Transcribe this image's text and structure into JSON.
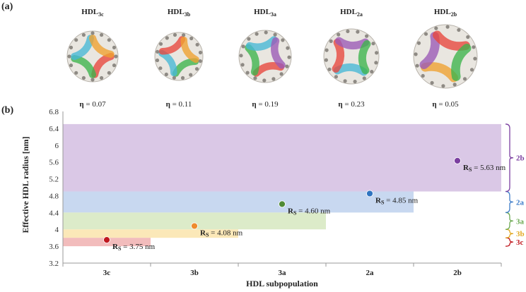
{
  "panel_a": {
    "label": "(a)",
    "eta_symbol": "η",
    "particles": [
      {
        "name_main": "HDL",
        "name_sub": "3c",
        "eta": "= 0.07",
        "colors": [
          "#e8453c",
          "#3cb44b",
          "#46b7d6",
          "#f0a030"
        ]
      },
      {
        "name_main": "HDL",
        "name_sub": "3b",
        "eta": "= 0.11",
        "colors": [
          "#3cb44b",
          "#46b7d6",
          "#e8453c",
          "#f0a030"
        ]
      },
      {
        "name_main": "HDL",
        "name_sub": "3a",
        "eta": "= 0.19",
        "colors": [
          "#e8453c",
          "#3cb44b",
          "#46b7d6",
          "#9b59b6"
        ]
      },
      {
        "name_main": "HDL",
        "name_sub": "2a",
        "eta": "= 0.23",
        "colors": [
          "#46b7d6",
          "#e8453c",
          "#9b59b6",
          "#3cb44b"
        ]
      },
      {
        "name_main": "HDL",
        "name_sub": "2b",
        "eta": "= 0.05",
        "colors": [
          "#f0a030",
          "#9b59b6",
          "#e8453c",
          "#3cb44b"
        ]
      }
    ]
  },
  "chart_data": {
    "type": "scatter",
    "panel_label": "(b)",
    "xlabel": "HDL subpopulation",
    "ylabel": "Effective HDL radius [nm]",
    "categories": [
      "3c",
      "3b",
      "3a",
      "2a",
      "2b"
    ],
    "ylim": [
      3.2,
      6.8
    ],
    "yticks": [
      "3.2",
      "3.6",
      "4",
      "4.4",
      "4.8",
      "5.2",
      "5.6",
      "6",
      "6.4",
      "6.8"
    ],
    "points": [
      {
        "category": "3c",
        "y": 3.75,
        "label_main": "R",
        "label_sub": "S",
        "label_value": " = 3.75 nm",
        "color": "#c0181f"
      },
      {
        "category": "3b",
        "y": 4.08,
        "label_main": "R",
        "label_sub": "S",
        "label_value": " = 4.08 nm",
        "color": "#ee8b2e"
      },
      {
        "category": "3a",
        "y": 4.6,
        "label_main": "R",
        "label_sub": "S",
        "label_value": " = 4.60 nm",
        "color": "#4f8a35"
      },
      {
        "category": "2a",
        "y": 4.85,
        "label_main": "R",
        "label_sub": "S",
        "label_value": " = 4.85 nm",
        "color": "#2f74c0"
      },
      {
        "category": "2b",
        "y": 5.63,
        "label_main": "R",
        "label_sub": "S",
        "label_value": " = 5.63 nm",
        "color": "#7b3fa0"
      }
    ],
    "bands": [
      {
        "name": "3c",
        "y0": 3.6,
        "y1": 3.8,
        "x_end_category": "3c",
        "fill": "#f2bcbc",
        "brace_color": "#c0181f"
      },
      {
        "name": "3b",
        "y0": 3.8,
        "y1": 4.0,
        "x_end_category": "3b",
        "fill": "#fbe8b8",
        "brace_color": "#e2a923"
      },
      {
        "name": "3a",
        "y0": 4.0,
        "y1": 4.4,
        "x_end_category": "3a",
        "fill": "#dcebc9",
        "brace_color": "#6aa84f"
      },
      {
        "name": "2a",
        "y0": 4.4,
        "y1": 4.9,
        "x_end_category": "2a",
        "fill": "#c8d8f0",
        "brace_color": "#3d7cc9"
      },
      {
        "name": "2b",
        "y0": 4.9,
        "y1": 6.5,
        "x_end_category": "2b",
        "fill": "#dac8e6",
        "brace_color": "#7b3fa0"
      }
    ],
    "grid": false,
    "legend": "none"
  }
}
